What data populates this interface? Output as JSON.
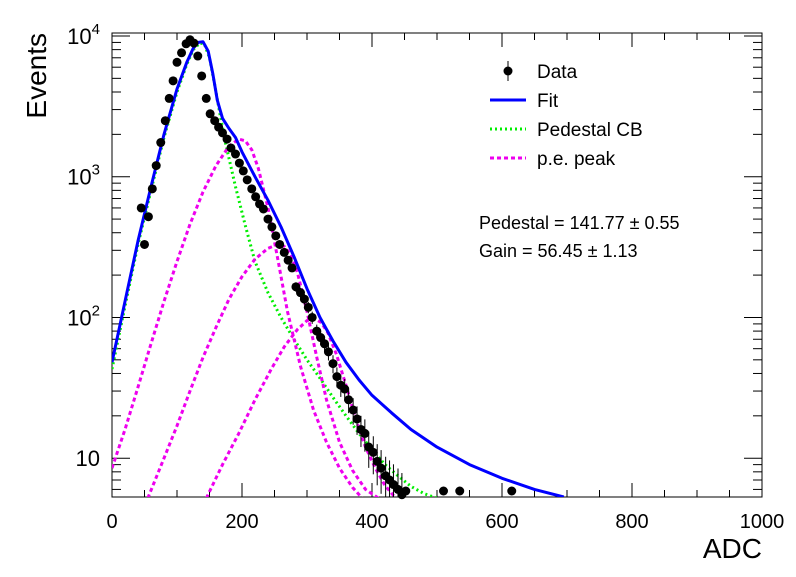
{
  "chart_data": {
    "type": "scatter",
    "xlabel": "ADC",
    "ylabel": "Events",
    "xlim": [
      0,
      1000
    ],
    "ylim": [
      5.3,
      10500
    ],
    "yscale": "log",
    "grid": false,
    "legend_placement": "top-right",
    "x_ticks": [
      "0",
      "200",
      "400",
      "600",
      "800",
      "1000"
    ],
    "y_ticks": [
      {
        "base": "10",
        "exp": ""
      },
      {
        "base": "10",
        "exp": "2"
      },
      {
        "base": "10",
        "exp": "3"
      },
      {
        "base": "10",
        "exp": "4"
      }
    ],
    "legend": [
      {
        "label": "Data",
        "style": "marker",
        "color": "#000000"
      },
      {
        "label": "Fit",
        "style": "solid",
        "color": "#0000ff"
      },
      {
        "label": "Pedestal CB",
        "style": "dotted",
        "color": "#00ee00"
      },
      {
        "label": "p.e. peak",
        "style": "dashed",
        "color": "#ee00ee"
      }
    ],
    "annotations": [
      {
        "text": "Pedestal = 141.77",
        "pm": "±",
        "err": "0.55"
      },
      {
        "text": "Gain = 56.45",
        "pm": "±",
        "err": "1.13"
      }
    ],
    "series": [
      {
        "name": "Data",
        "kind": "points",
        "color": "#000000",
        "points": [
          {
            "x": 45,
            "y": 600
          },
          {
            "x": 50,
            "y": 330
          },
          {
            "x": 56,
            "y": 520
          },
          {
            "x": 62,
            "y": 820
          },
          {
            "x": 68,
            "y": 1200
          },
          {
            "x": 75,
            "y": 1750
          },
          {
            "x": 82,
            "y": 2500
          },
          {
            "x": 88,
            "y": 3600
          },
          {
            "x": 94,
            "y": 4800
          },
          {
            "x": 100,
            "y": 6500
          },
          {
            "x": 107,
            "y": 7600
          },
          {
            "x": 114,
            "y": 8800
          },
          {
            "x": 120,
            "y": 9400
          },
          {
            "x": 126,
            "y": 8900
          },
          {
            "x": 132,
            "y": 7200
          },
          {
            "x": 138,
            "y": 5200
          },
          {
            "x": 145,
            "y": 3600
          },
          {
            "x": 151,
            "y": 2800
          },
          {
            "x": 158,
            "y": 2500
          },
          {
            "x": 164,
            "y": 2250
          },
          {
            "x": 170,
            "y": 2050
          },
          {
            "x": 177,
            "y": 1850
          },
          {
            "x": 183,
            "y": 1600
          },
          {
            "x": 190,
            "y": 1450
          },
          {
            "x": 196,
            "y": 1250
          },
          {
            "x": 202,
            "y": 1100
          },
          {
            "x": 208,
            "y": 950
          },
          {
            "x": 215,
            "y": 820
          },
          {
            "x": 221,
            "y": 720
          },
          {
            "x": 227,
            "y": 640
          },
          {
            "x": 233,
            "y": 590
          },
          {
            "x": 240,
            "y": 500
          },
          {
            "x": 246,
            "y": 440
          },
          {
            "x": 252,
            "y": 380
          },
          {
            "x": 258,
            "y": 330
          },
          {
            "x": 265,
            "y": 290
          },
          {
            "x": 271,
            "y": 255
          },
          {
            "x": 277,
            "y": 225
          },
          {
            "x": 283,
            "y": 165
          },
          {
            "x": 290,
            "y": 150
          },
          {
            "x": 296,
            "y": 135
          },
          {
            "x": 302,
            "y": 118
          },
          {
            "x": 308,
            "y": 100
          },
          {
            "x": 315,
            "y": 80
          },
          {
            "x": 321,
            "y": 72
          },
          {
            "x": 327,
            "y": 65
          },
          {
            "x": 333,
            "y": 57
          },
          {
            "x": 340,
            "y": 47
          },
          {
            "x": 346,
            "y": 38
          },
          {
            "x": 352,
            "y": 33
          },
          {
            "x": 358,
            "y": 31
          },
          {
            "x": 364,
            "y": 26
          },
          {
            "x": 371,
            "y": 22
          },
          {
            "x": 377,
            "y": 19
          },
          {
            "x": 383,
            "y": 16
          },
          {
            "x": 389,
            "y": 15
          },
          {
            "x": 395,
            "y": 12
          },
          {
            "x": 402,
            "y": 11
          },
          {
            "x": 408,
            "y": 9.5
          },
          {
            "x": 414,
            "y": 8.5
          },
          {
            "x": 421,
            "y": 7.5
          },
          {
            "x": 427,
            "y": 7
          },
          {
            "x": 433,
            "y": 6.5
          },
          {
            "x": 440,
            "y": 6
          },
          {
            "x": 446,
            "y": 5.5
          },
          {
            "x": 452,
            "y": 5.2
          },
          {
            "x": 510,
            "y": 5.0
          },
          {
            "x": 535,
            "y": 4.8
          },
          {
            "x": 615,
            "y": 4.7
          }
        ]
      },
      {
        "name": "Fit",
        "kind": "line",
        "color": "#0000ff",
        "points": [
          {
            "x": 0,
            "y": 48
          },
          {
            "x": 20,
            "y": 130
          },
          {
            "x": 40,
            "y": 350
          },
          {
            "x": 60,
            "y": 850
          },
          {
            "x": 80,
            "y": 2000
          },
          {
            "x": 100,
            "y": 4200
          },
          {
            "x": 115,
            "y": 6500
          },
          {
            "x": 125,
            "y": 8200
          },
          {
            "x": 133,
            "y": 9000
          },
          {
            "x": 140,
            "y": 9100
          },
          {
            "x": 148,
            "y": 7800
          },
          {
            "x": 155,
            "y": 5400
          },
          {
            "x": 162,
            "y": 3500
          },
          {
            "x": 170,
            "y": 2600
          },
          {
            "x": 180,
            "y": 2200
          },
          {
            "x": 190,
            "y": 1900
          },
          {
            "x": 200,
            "y": 1500
          },
          {
            "x": 220,
            "y": 1000
          },
          {
            "x": 240,
            "y": 680
          },
          {
            "x": 260,
            "y": 440
          },
          {
            "x": 280,
            "y": 270
          },
          {
            "x": 300,
            "y": 160
          },
          {
            "x": 320,
            "y": 100
          },
          {
            "x": 340,
            "y": 68
          },
          {
            "x": 360,
            "y": 48
          },
          {
            "x": 380,
            "y": 36
          },
          {
            "x": 400,
            "y": 28
          },
          {
            "x": 430,
            "y": 21
          },
          {
            "x": 460,
            "y": 16
          },
          {
            "x": 500,
            "y": 12
          },
          {
            "x": 550,
            "y": 9
          },
          {
            "x": 600,
            "y": 7.2
          },
          {
            "x": 650,
            "y": 6
          },
          {
            "x": 695,
            "y": 5.3
          }
        ]
      },
      {
        "name": "Pedestal CB",
        "kind": "line",
        "color": "#00ee00",
        "points": [
          {
            "x": 0,
            "y": 43
          },
          {
            "x": 20,
            "y": 120
          },
          {
            "x": 40,
            "y": 330
          },
          {
            "x": 60,
            "y": 800
          },
          {
            "x": 80,
            "y": 1900
          },
          {
            "x": 100,
            "y": 4000
          },
          {
            "x": 115,
            "y": 6300
          },
          {
            "x": 125,
            "y": 8000
          },
          {
            "x": 135,
            "y": 8900
          },
          {
            "x": 142,
            "y": 8800
          },
          {
            "x": 150,
            "y": 7000
          },
          {
            "x": 158,
            "y": 4500
          },
          {
            "x": 166,
            "y": 2800
          },
          {
            "x": 175,
            "y": 1700
          },
          {
            "x": 190,
            "y": 850
          },
          {
            "x": 205,
            "y": 450
          },
          {
            "x": 220,
            "y": 250
          },
          {
            "x": 240,
            "y": 150
          },
          {
            "x": 260,
            "y": 100
          },
          {
            "x": 280,
            "y": 70
          },
          {
            "x": 300,
            "y": 50
          },
          {
            "x": 320,
            "y": 37
          },
          {
            "x": 340,
            "y": 27
          },
          {
            "x": 360,
            "y": 20
          },
          {
            "x": 380,
            "y": 15
          },
          {
            "x": 400,
            "y": 11.5
          },
          {
            "x": 420,
            "y": 9
          },
          {
            "x": 440,
            "y": 7.5
          },
          {
            "x": 460,
            "y": 6.3
          },
          {
            "x": 480,
            "y": 5.6
          },
          {
            "x": 500,
            "y": 5.2
          }
        ]
      },
      {
        "name": "p.e. peak",
        "kind": "line",
        "color": "#ee00ee",
        "points": [
          {
            "x": 0,
            "y": 8.5
          },
          {
            "x": 20,
            "y": 16
          },
          {
            "x": 40,
            "y": 32
          },
          {
            "x": 60,
            "y": 65
          },
          {
            "x": 80,
            "y": 130
          },
          {
            "x": 100,
            "y": 250
          },
          {
            "x": 120,
            "y": 460
          },
          {
            "x": 140,
            "y": 780
          },
          {
            "x": 160,
            "y": 1200
          },
          {
            "x": 180,
            "y": 1650
          },
          {
            "x": 195,
            "y": 1850
          },
          {
            "x": 205,
            "y": 1800
          },
          {
            "x": 215,
            "y": 1550
          },
          {
            "x": 225,
            "y": 1150
          },
          {
            "x": 240,
            "y": 600
          },
          {
            "x": 255,
            "y": 260
          },
          {
            "x": 270,
            "y": 110
          },
          {
            "x": 290,
            "y": 45
          },
          {
            "x": 310,
            "y": 22
          },
          {
            "x": 330,
            "y": 13
          },
          {
            "x": 350,
            "y": 8.5
          },
          {
            "x": 370,
            "y": 6.2
          },
          {
            "x": 385,
            "y": 5.2
          }
        ]
      },
      {
        "name": "p.e. peak",
        "kind": "line",
        "color": "#ee00ee",
        "points": [
          {
            "x": 55,
            "y": 5.2
          },
          {
            "x": 80,
            "y": 10
          },
          {
            "x": 100,
            "y": 17
          },
          {
            "x": 120,
            "y": 30
          },
          {
            "x": 140,
            "y": 52
          },
          {
            "x": 160,
            "y": 85
          },
          {
            "x": 180,
            "y": 135
          },
          {
            "x": 200,
            "y": 195
          },
          {
            "x": 220,
            "y": 260
          },
          {
            "x": 240,
            "y": 310
          },
          {
            "x": 255,
            "y": 330
          },
          {
            "x": 265,
            "y": 320
          },
          {
            "x": 275,
            "y": 280
          },
          {
            "x": 285,
            "y": 210
          },
          {
            "x": 300,
            "y": 110
          },
          {
            "x": 315,
            "y": 52
          },
          {
            "x": 330,
            "y": 26
          },
          {
            "x": 350,
            "y": 13
          },
          {
            "x": 370,
            "y": 8.2
          },
          {
            "x": 390,
            "y": 6
          },
          {
            "x": 410,
            "y": 5.2
          }
        ]
      },
      {
        "name": "p.e. peak",
        "kind": "line",
        "color": "#ee00ee",
        "points": [
          {
            "x": 145,
            "y": 5.2
          },
          {
            "x": 170,
            "y": 9
          },
          {
            "x": 195,
            "y": 15
          },
          {
            "x": 220,
            "y": 26
          },
          {
            "x": 245,
            "y": 43
          },
          {
            "x": 265,
            "y": 62
          },
          {
            "x": 285,
            "y": 82
          },
          {
            "x": 300,
            "y": 95
          },
          {
            "x": 312,
            "y": 98
          },
          {
            "x": 322,
            "y": 92
          },
          {
            "x": 332,
            "y": 78
          },
          {
            "x": 345,
            "y": 55
          },
          {
            "x": 360,
            "y": 33
          },
          {
            "x": 375,
            "y": 19
          },
          {
            "x": 390,
            "y": 12
          },
          {
            "x": 405,
            "y": 8.5
          },
          {
            "x": 420,
            "y": 6.4
          },
          {
            "x": 435,
            "y": 5.3
          }
        ]
      }
    ]
  }
}
